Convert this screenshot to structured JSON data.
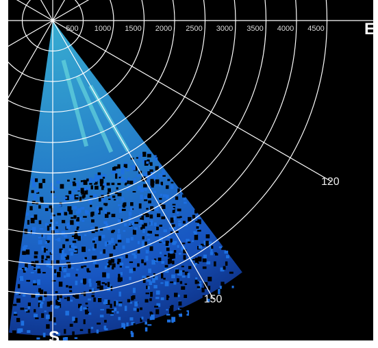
{
  "range_labels": [
    "500",
    "1000",
    "1500",
    "2000",
    "2500",
    "3000",
    "3500",
    "4000",
    "4500"
  ],
  "bearing_labels": [
    "120",
    "150"
  ],
  "compass": {
    "east": "E",
    "south": "S"
  }
}
